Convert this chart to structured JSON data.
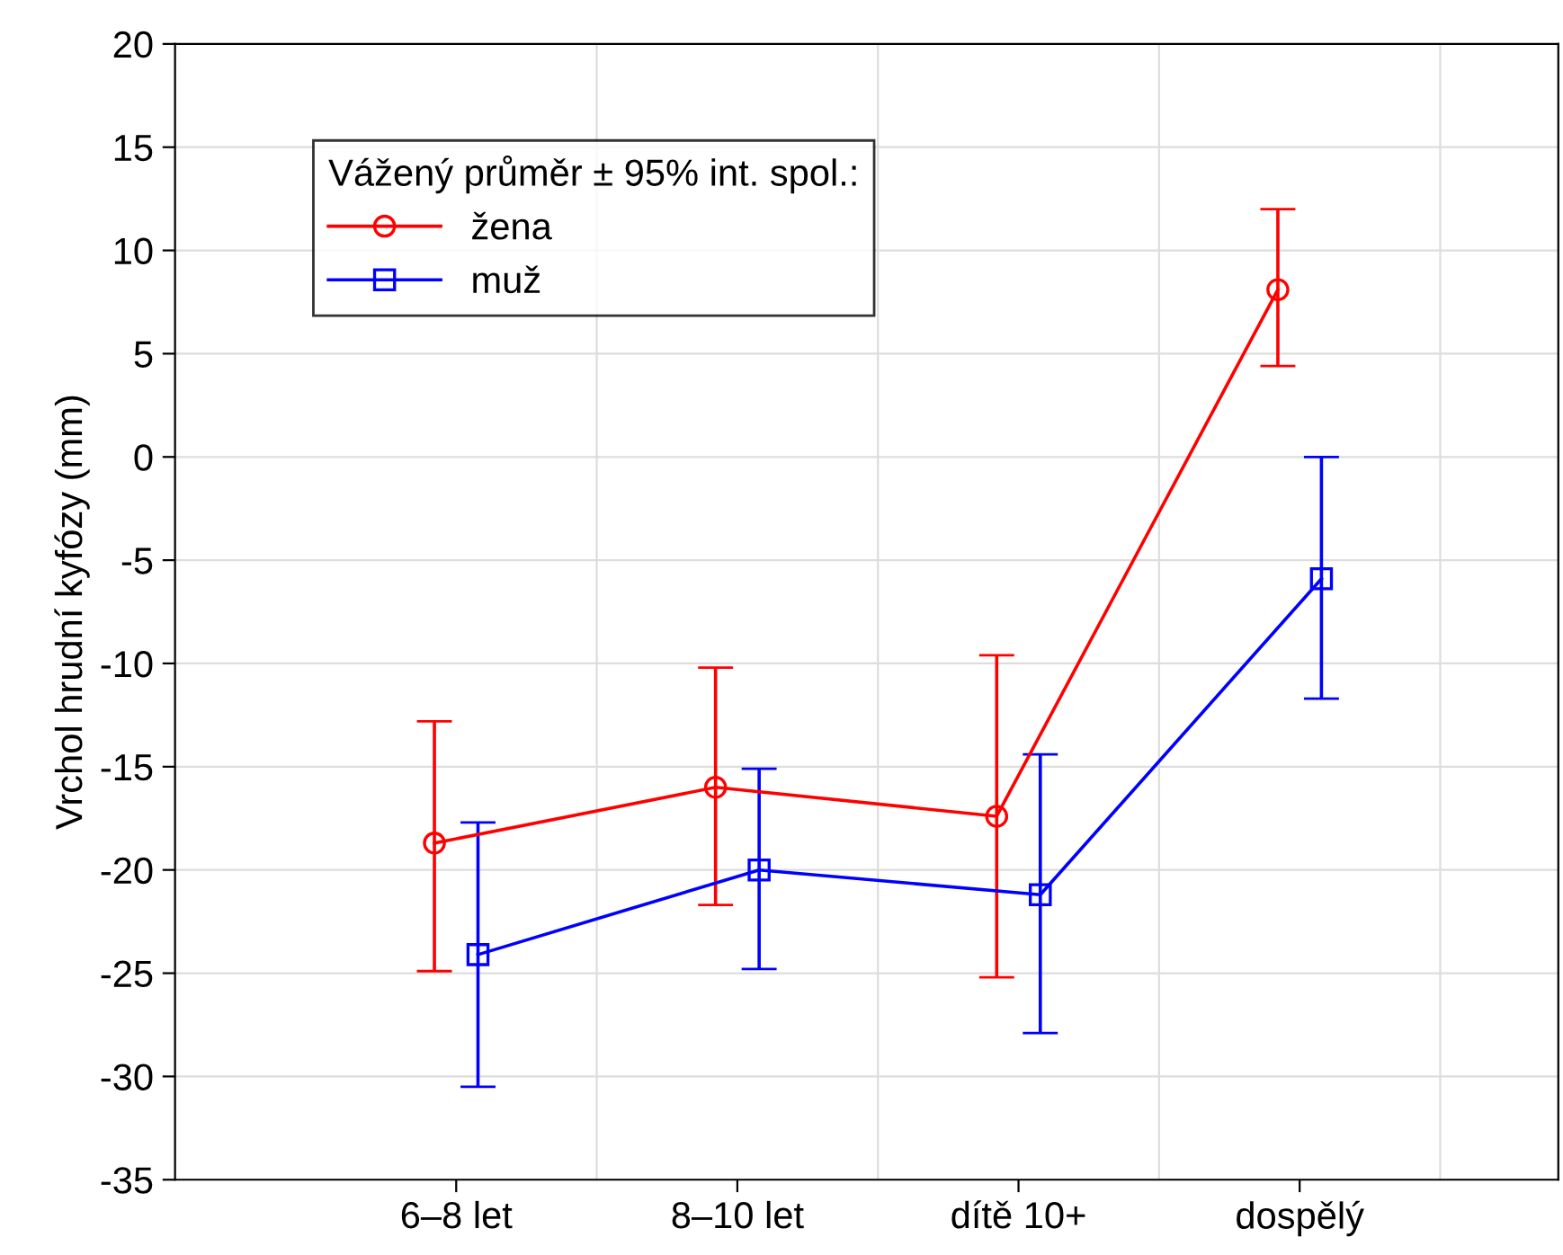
{
  "chart_data": {
    "type": "line",
    "ylabel": "Vrchol hrudní kyfózy (mm)",
    "legend_title": "Vážený průměr ± 95% int. spol.:",
    "categories": [
      "6–8 let",
      "8–10 let",
      "dítě 10+",
      "dospělý"
    ],
    "series": [
      {
        "name": "žena",
        "color": "#ff0000",
        "marker": "circle",
        "values": [
          -18.7,
          -16.0,
          -17.4,
          8.1
        ],
        "errors": [
          [
            -24.9,
            -12.8
          ],
          [
            -21.7,
            -10.2
          ],
          [
            -25.2,
            -9.6
          ],
          [
            4.4,
            12.0
          ]
        ]
      },
      {
        "name": "muž",
        "color": "#0000ff",
        "marker": "square",
        "values": [
          -24.1,
          -20.0,
          -21.2,
          -5.9
        ],
        "errors": [
          [
            -30.5,
            -17.7
          ],
          [
            -24.8,
            -15.1
          ],
          [
            -27.9,
            -14.4
          ],
          [
            -11.7,
            0.0
          ]
        ]
      }
    ],
    "ylim": [
      -35,
      20
    ],
    "yticks": [
      -35,
      -30,
      -25,
      -20,
      -15,
      -10,
      -5,
      0,
      5,
      10,
      15,
      20
    ],
    "grid": true,
    "legend": "top left",
    "line_style": "solid"
  }
}
